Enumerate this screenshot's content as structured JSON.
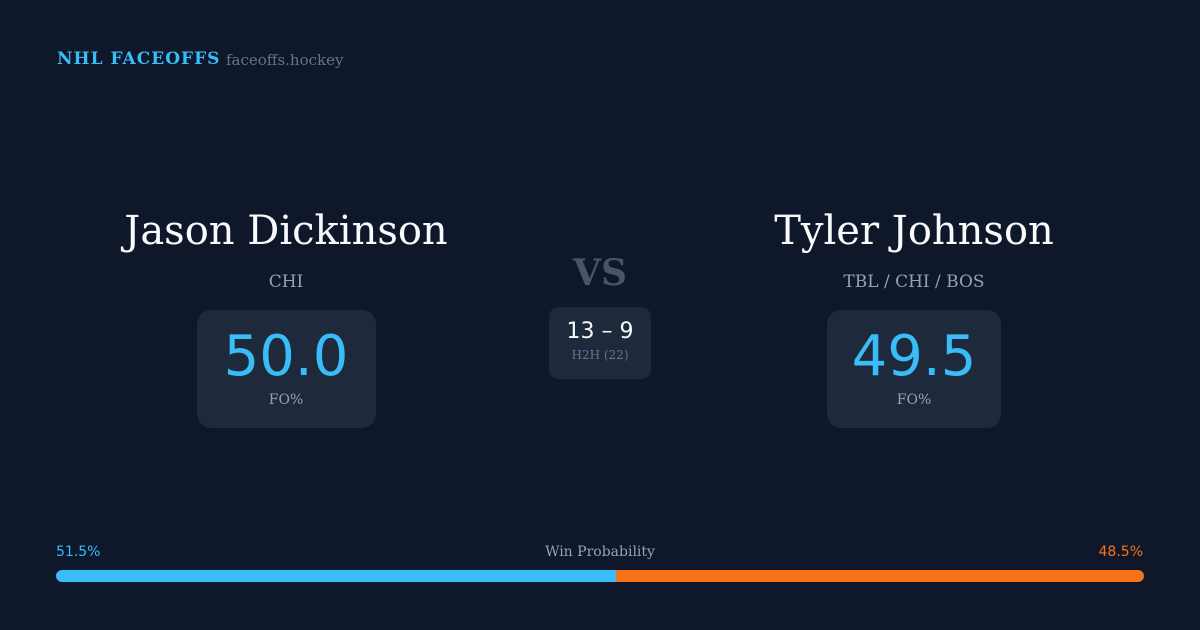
{
  "brand": "NHL FACEOFFS",
  "site": "faceoffs.hockey",
  "player1": {
    "name": "Jason Dickinson",
    "team": "CHI",
    "fo_pct": "50.0",
    "fo_label": "FO%"
  },
  "player2": {
    "name": "Tyler Johnson",
    "team": "TBL / CHI / BOS",
    "fo_pct": "49.5",
    "fo_label": "FO%"
  },
  "vs": "VS",
  "h2h": {
    "record": "13 – 9",
    "label": "H2H (22)"
  },
  "win_probability": {
    "label": "Win Probability",
    "p1": "51.5%",
    "p2": "48.5%",
    "p1_value": 51.5,
    "p2_value": 48.5
  },
  "colors": {
    "p1": "#38bdf8",
    "p2": "#f97316"
  }
}
